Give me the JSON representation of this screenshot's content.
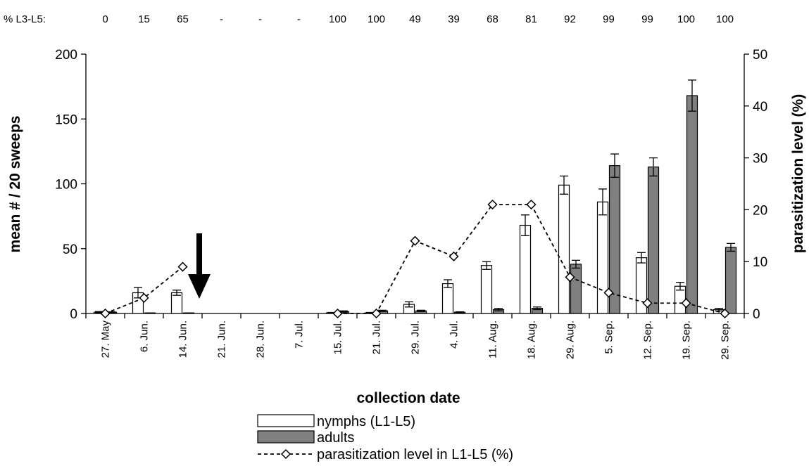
{
  "chart_data": {
    "type": "bar",
    "categories": [
      "27. May",
      "6. Jun.",
      "14. Jun.",
      "21. Jun.",
      "28. Jun.",
      "7. Jul.",
      "15. Jul.",
      "21. Jul.",
      "29. Jul.",
      "4. Jul.",
      "11. Aug.",
      "18. Aug.",
      "29. Aug.",
      "5. Sep.",
      "12. Sep.",
      "19. Sep.",
      "29. Sep."
    ],
    "top_row_label": "% L3-L5:",
    "top_row_values": [
      "0",
      "15",
      "65",
      "-",
      "-",
      "-",
      "100",
      "100",
      "49",
      "39",
      "68",
      "81",
      "92",
      "99",
      "99",
      "100",
      "100"
    ],
    "series": [
      {
        "name": "nymphs (L1-L5)",
        "kind": "bar",
        "color": "#ffffff",
        "values": [
          1,
          16,
          16,
          null,
          null,
          null,
          0.5,
          0.5,
          7,
          23,
          37,
          68,
          99,
          86,
          43,
          21,
          3
        ],
        "errors": [
          0.5,
          4,
          2,
          null,
          null,
          null,
          0.3,
          0.3,
          2,
          3,
          3,
          8,
          7,
          10,
          4,
          3,
          1
        ]
      },
      {
        "name": "adults",
        "kind": "bar",
        "color": "#808080",
        "values": [
          1,
          0.3,
          0.3,
          null,
          null,
          null,
          1.5,
          2,
          2,
          1,
          3,
          4,
          38,
          114,
          113,
          168,
          51
        ],
        "errors": [
          0.3,
          0.1,
          0.1,
          null,
          null,
          null,
          0.5,
          0.5,
          0.5,
          0.3,
          1,
          1,
          3,
          9,
          7,
          12,
          3
        ]
      },
      {
        "name": "parasitization level in L1-L5 (%)",
        "kind": "line",
        "axis": "right",
        "values": [
          0,
          3,
          9,
          null,
          null,
          null,
          0,
          0,
          14,
          11,
          21,
          21,
          7,
          4,
          2,
          2,
          0
        ]
      }
    ],
    "ylabel": "mean # / 20 sweeps",
    "y2label": "parasitization level (%)",
    "xlabel": "collection date",
    "ylim": [
      0,
      200
    ],
    "y2lim": [
      0,
      50
    ],
    "yticks": [
      "0",
      "50",
      "100",
      "150",
      "200"
    ],
    "y2ticks": [
      "0",
      "10",
      "20",
      "30",
      "40",
      "50"
    ],
    "annotation": "arrow pointing down at 21. Jun.",
    "legend_position": "bottom-center"
  }
}
